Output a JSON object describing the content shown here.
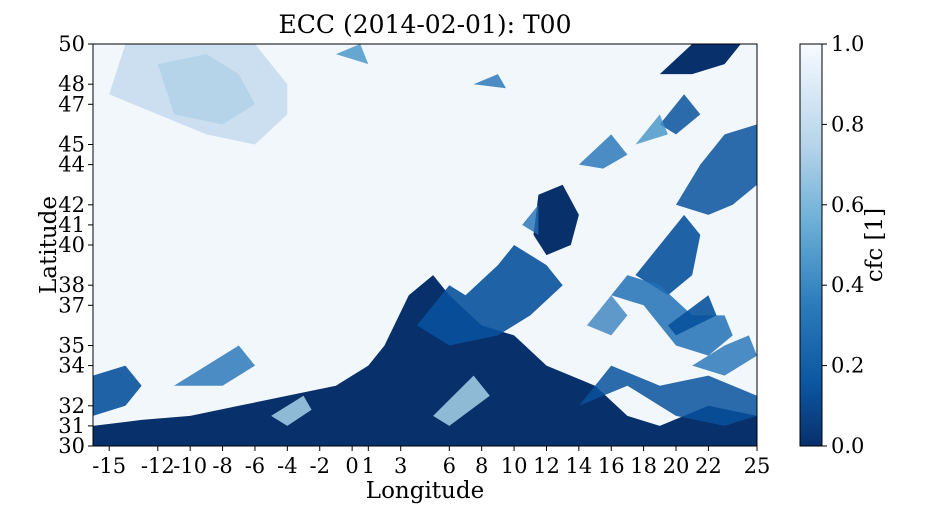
{
  "chart_data": {
    "type": "heatmap",
    "title": "ECC (2014-02-01): T00",
    "xlabel": "Longitude",
    "ylabel": "Latitude",
    "xlim": [
      -16,
      25
    ],
    "ylim": [
      30,
      50
    ],
    "x_ticks": [
      -15,
      -12,
      -10,
      -8,
      -6,
      -4,
      -2,
      0,
      1,
      3,
      6,
      8,
      10,
      12,
      14,
      16,
      18,
      20,
      22,
      25
    ],
    "x_tick_labels": [
      "-15",
      "-12",
      "-10",
      "-8",
      "-6",
      "-4",
      "-2",
      "0",
      "1",
      "3",
      "6",
      "8",
      "10",
      "12",
      "14",
      "16",
      "18",
      "20",
      "22",
      "25"
    ],
    "y_ticks": [
      30,
      31,
      32,
      34,
      35,
      37,
      38,
      40,
      41,
      42,
      44,
      45,
      47,
      48,
      50
    ],
    "y_tick_labels": [
      "30",
      "31",
      "32",
      "34",
      "35",
      "37",
      "38",
      "40",
      "41",
      "42",
      "44",
      "45",
      "47",
      "48",
      "50"
    ],
    "colorbar": {
      "label": "cfc [1]",
      "range": [
        0.0,
        1.0
      ],
      "ticks": [
        0.0,
        0.2,
        0.4,
        0.6,
        0.8,
        1.0
      ],
      "tick_labels": [
        "0.0",
        "0.2",
        "0.4",
        "0.6",
        "0.8",
        "1.0"
      ],
      "colormap": "Blues_r",
      "color_low": "#08306b",
      "color_mid": "#6aaed6",
      "color_high": "#f7fbff"
    },
    "grid": false,
    "cloud_regions": [
      {
        "desc": "clear sky band along southern edge",
        "lon": [
          -16,
          25
        ],
        "lat": [
          30,
          31.5
        ],
        "cfc": 0.0
      },
      {
        "desc": "clear area Sahara / Libya",
        "lon": [
          3,
          18
        ],
        "lat": [
          30,
          35
        ],
        "cfc": 0.0
      },
      {
        "desc": "clear region over Italy / Adriatic",
        "lon": [
          11,
          14
        ],
        "lat": [
          40,
          43
        ],
        "cfc": 0.05
      },
      {
        "desc": "clear patches over Balkans / Aegean",
        "lon": [
          17,
          25
        ],
        "lat": [
          35,
          45
        ],
        "cfc": 0.15
      },
      {
        "desc": "partial cloud NW Atlantic",
        "lon": [
          -13,
          -5
        ],
        "lat": [
          45,
          50
        ],
        "cfc": 0.7
      },
      {
        "desc": "overcast Atlantic / Iberia / France",
        "lon": [
          -16,
          12
        ],
        "lat": [
          35,
          50
        ],
        "cfc": 0.97
      },
      {
        "desc": "overcast central Mediterranean",
        "lon": [
          14,
          18
        ],
        "lat": [
          33,
          38
        ],
        "cfc": 0.9
      }
    ]
  }
}
